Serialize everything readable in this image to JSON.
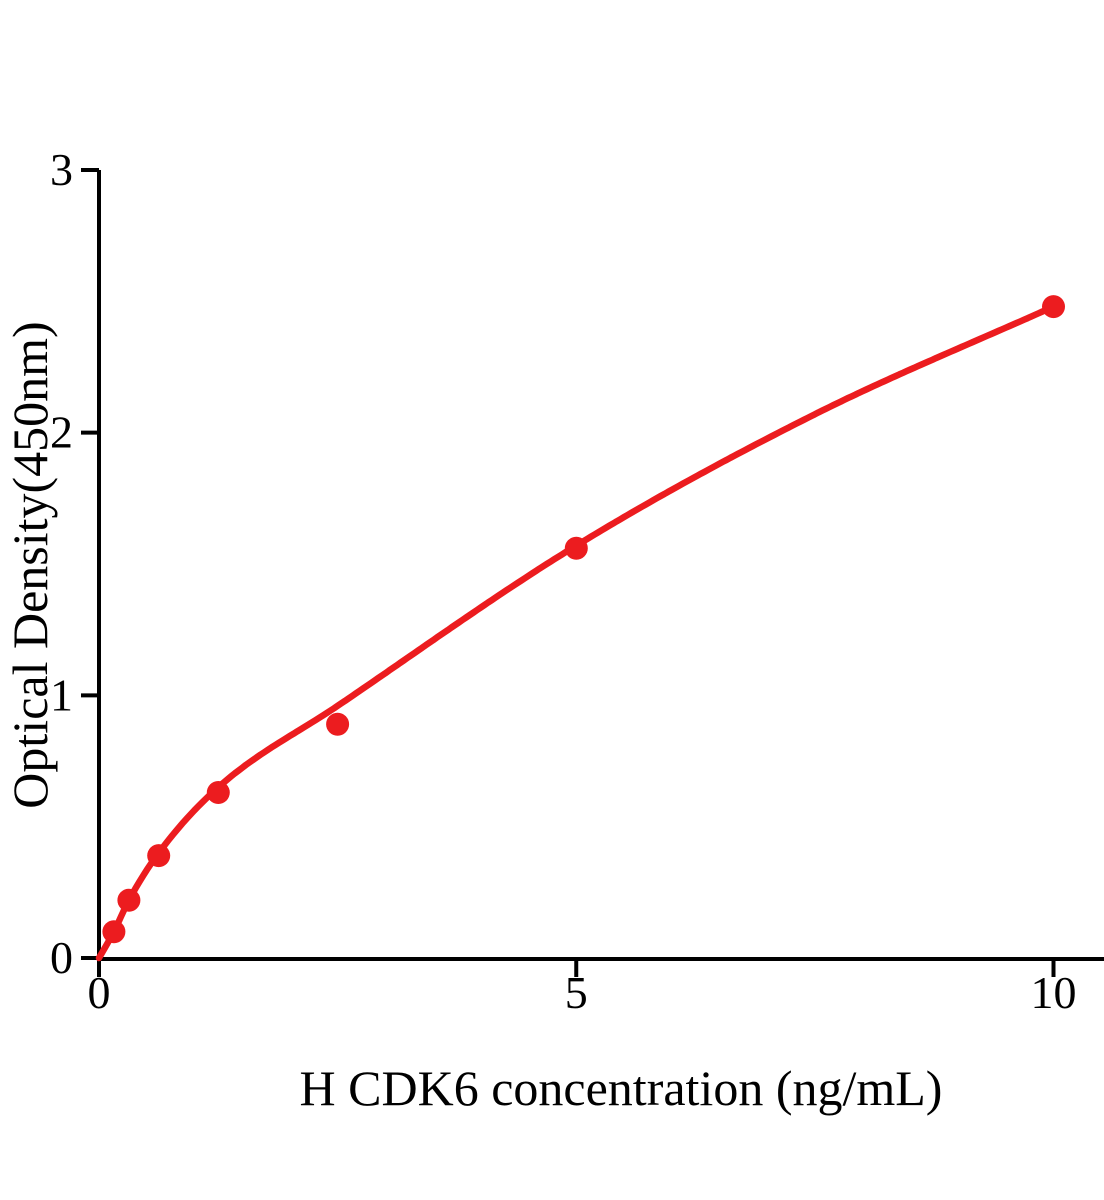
{
  "figure": {
    "description": "ELISA standard curve plot, red fitted curve with red data points on white background"
  },
  "colors": {
    "accent_red": "#EC1C1F",
    "axis": "#000000",
    "background": "#FFFFFF"
  },
  "chart_data": {
    "type": "scatter",
    "title": "",
    "xlabel": "H CDK6 concentration (ng/mL)",
    "ylabel": "Optical Density(450nm)",
    "xlim": [
      0,
      10.55
    ],
    "ylim": [
      0,
      3
    ],
    "grid": false,
    "legend": "none",
    "x_ticks": [
      {
        "value": 0,
        "label": "0"
      },
      {
        "value": 5,
        "label": "5"
      },
      {
        "value": 10,
        "label": "10"
      }
    ],
    "y_ticks": [
      {
        "value": 0,
        "label": "0"
      },
      {
        "value": 1,
        "label": "1"
      },
      {
        "value": 2,
        "label": "2"
      },
      {
        "value": 3,
        "label": "3"
      }
    ],
    "series": [
      {
        "name": "standard-points",
        "type": "scatter",
        "color": "#EC1C1F",
        "x": [
          0.156,
          0.313,
          0.625,
          1.25,
          2.5,
          5,
          10
        ],
        "y": [
          0.1,
          0.22,
          0.39,
          0.63,
          0.89,
          1.56,
          2.48
        ]
      },
      {
        "name": "fit-curve",
        "type": "line",
        "color": "#EC1C1F",
        "x": [
          0,
          0.156,
          0.313,
          0.625,
          1.25,
          2.5,
          5,
          7.5,
          10
        ],
        "y": [
          0,
          0.1,
          0.22,
          0.4,
          0.65,
          0.96,
          1.57,
          2.07,
          2.48
        ]
      }
    ]
  }
}
